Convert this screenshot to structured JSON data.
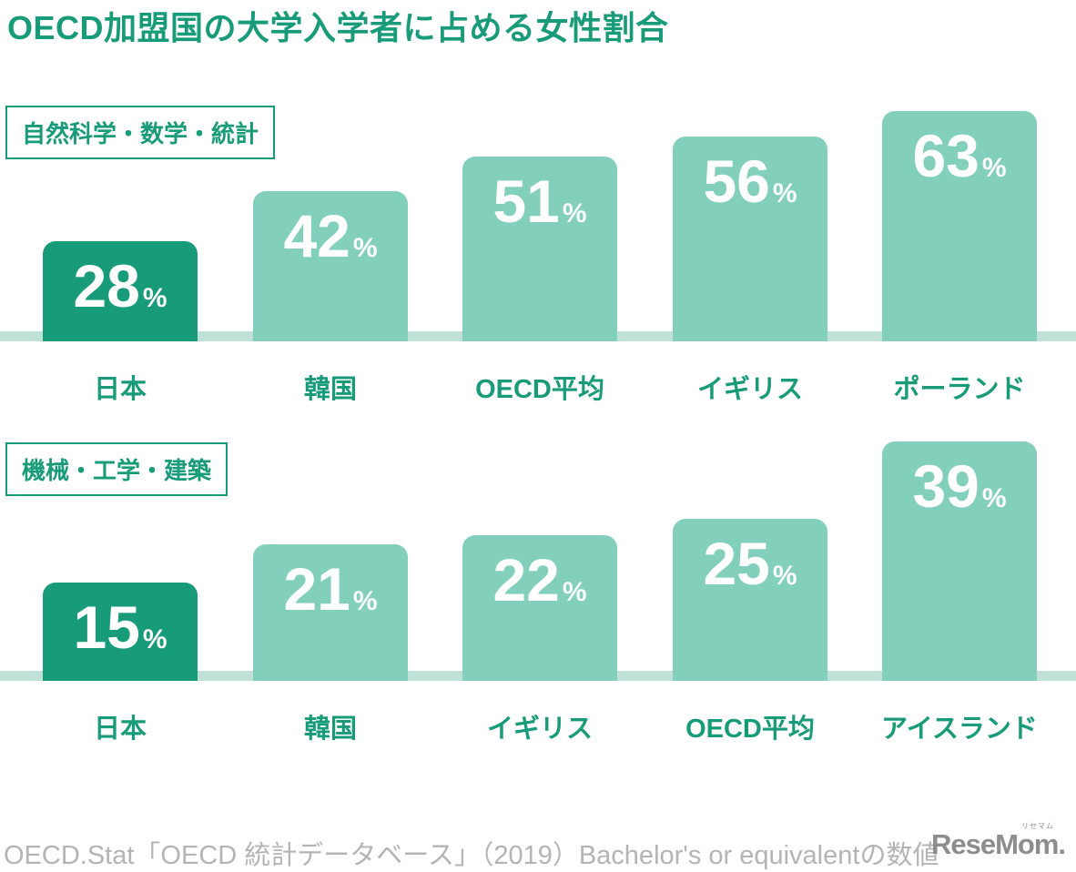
{
  "title": "OECD加盟国の大学入学者に占める女性割合",
  "colors": {
    "accent_dark_green": "#189b78",
    "bar_light_green": "#82d0bc",
    "baseline_band": "#c0e1d7",
    "value_text": "#ffffff",
    "footer_gray": "#b4b4b4",
    "logo_gray": "#8d8d8d"
  },
  "chart_data": [
    {
      "type": "bar",
      "title": "自然科学・数学・統計",
      "categories": [
        "日本",
        "韓国",
        "OECD平均",
        "イギリス",
        "ポーランド"
      ],
      "values": [
        28,
        42,
        51,
        56,
        63
      ],
      "unit": "%",
      "highlight_index": 0,
      "xlabel": "",
      "ylabel": "",
      "legend": "none",
      "grid": false,
      "note": "highlighted bar (日本) is dark green; others light green; values printed inside bar tops"
    },
    {
      "type": "bar",
      "title": "機械・工学・建築",
      "categories": [
        "日本",
        "韓国",
        "イギリス",
        "OECD平均",
        "アイスランド"
      ],
      "values": [
        15,
        21,
        22,
        25,
        39
      ],
      "unit": "%",
      "highlight_index": 0,
      "xlabel": "",
      "ylabel": "",
      "legend": "none",
      "grid": false,
      "note": "highlighted bar (日本) is dark green; others light green; values printed inside bar tops"
    }
  ],
  "footer": {
    "source": "OECD.Stat「OECD 統計データベース」（2019）Bachelor's or equivalentの数値",
    "logo_text": "ReseMom.",
    "logo_ruby": "リセマム"
  }
}
